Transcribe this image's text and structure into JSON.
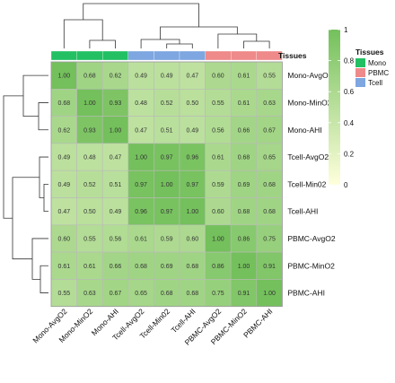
{
  "chart_data": {
    "type": "heatmap",
    "rows": [
      "Mono-AvgO2",
      "Mono-MinO2",
      "Mono-AHI",
      "Tcell-AvgO2",
      "Tcell-Min02",
      "Tcell-AHI",
      "PBMC-AvgO2",
      "PBMC-MinO2",
      "PBMC-AHI"
    ],
    "columns": [
      "Mono-AvgO2",
      "Mono-MinO2",
      "Mono-AHI",
      "Tcell-AvgO2",
      "Tcell-Min02",
      "Tcell-AHI",
      "PBMC-AvgO2",
      "PBMC-MinO2",
      "PBMC-AHI"
    ],
    "values": [
      [
        "1.00",
        "0.68",
        "0.62",
        "0.49",
        "0.49",
        "0.47",
        "0.60",
        "0.61",
        "0.55"
      ],
      [
        "0.68",
        "1.00",
        "0.93",
        "0.48",
        "0.52",
        "0.50",
        "0.55",
        "0.61",
        "0.63"
      ],
      [
        "0.62",
        "0.93",
        "1.00",
        "0.47",
        "0.51",
        "0.49",
        "0.56",
        "0.66",
        "0.67"
      ],
      [
        "0.49",
        "0.48",
        "0.47",
        "1.00",
        "0.97",
        "0.96",
        "0.61",
        "0.68",
        "0.65"
      ],
      [
        "0.49",
        "0.52",
        "0.51",
        "0.97",
        "1.00",
        "0.97",
        "0.59",
        "0.69",
        "0.68"
      ],
      [
        "0.47",
        "0.50",
        "0.49",
        "0.96",
        "0.97",
        "1.00",
        "0.60",
        "0.68",
        "0.68"
      ],
      [
        "0.60",
        "0.55",
        "0.56",
        "0.61",
        "0.59",
        "0.60",
        "1.00",
        "0.86",
        "0.75"
      ],
      [
        "0.61",
        "0.61",
        "0.66",
        "0.68",
        "0.69",
        "0.68",
        "0.86",
        "1.00",
        "0.91"
      ],
      [
        "0.55",
        "0.63",
        "0.67",
        "0.65",
        "0.68",
        "0.68",
        "0.75",
        "0.91",
        "1.00"
      ]
    ],
    "column_groups": [
      "Mono",
      "Mono",
      "Mono",
      "Tcell",
      "Tcell",
      "Tcell",
      "PBMC",
      "PBMC",
      "PBMC"
    ],
    "annotation_title": "Tissues",
    "color_scale": {
      "min": 0,
      "max": 1,
      "low_color": "#ffffdc",
      "high_color": "#74c05c",
      "ticks": [
        "0",
        "0.2",
        "0.4",
        "0.6",
        "0.8",
        "1"
      ]
    },
    "legend": {
      "title": "Tissues",
      "entries": [
        {
          "name": "Mono",
          "color": "#22c063"
        },
        {
          "name": "PBMC",
          "color": "#ef8a8a"
        },
        {
          "name": "Tcell",
          "color": "#7ea6e0"
        }
      ]
    },
    "dendrograms": {
      "rows": true,
      "columns": true
    },
    "grid": true
  }
}
